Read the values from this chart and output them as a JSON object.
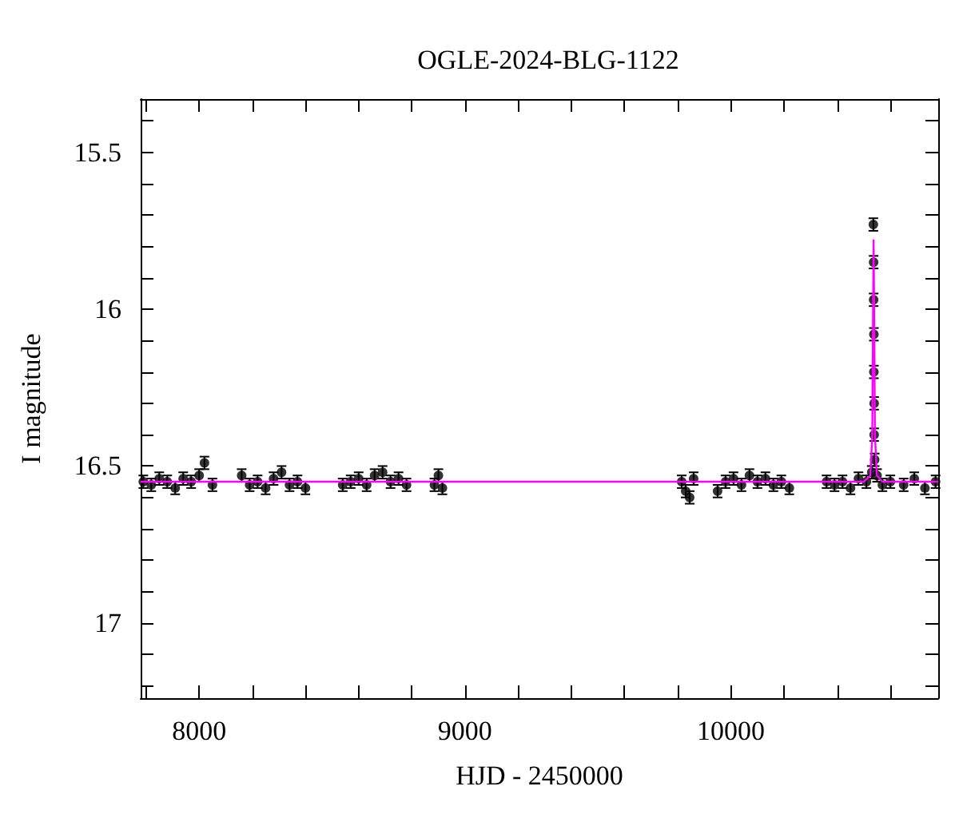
{
  "chart_data": {
    "type": "scatter",
    "title": "OGLE-2024-BLG-1122",
    "xlabel": "HJD - 2450000",
    "ylabel": "I magnitude",
    "xlim": [
      7780,
      10780
    ],
    "xticks": [
      {
        "value": 7800,
        "label": null
      },
      8000,
      {
        "value": 8200,
        "label": null
      },
      {
        "value": 8400,
        "label": null
      },
      {
        "value": 8600,
        "label": null
      },
      {
        "value": 8800,
        "label": null
      },
      9000,
      {
        "value": 9200,
        "label": null
      },
      {
        "value": 9400,
        "label": null
      },
      {
        "value": 9600,
        "label": null
      },
      {
        "value": 9800,
        "label": null
      },
      10000,
      {
        "value": 10200,
        "label": null
      },
      {
        "value": 10400,
        "label": null
      },
      {
        "value": 10600,
        "label": null
      }
    ],
    "ylim": [
      17.24,
      15.33
    ],
    "yticks": [
      {
        "value": 15.4,
        "label": null
      },
      15.5,
      {
        "value": 15.6,
        "label": null
      },
      {
        "value": 15.7,
        "label": null
      },
      {
        "value": 15.8,
        "label": null
      },
      {
        "value": 15.9,
        "label": null
      },
      16,
      {
        "value": 16.1,
        "label": null
      },
      {
        "value": 16.2,
        "label": null
      },
      {
        "value": 16.3,
        "label": null
      },
      {
        "value": 16.4,
        "label": null
      },
      16.5,
      {
        "value": 16.6,
        "label": null
      },
      {
        "value": 16.7,
        "label": null
      },
      {
        "value": 16.8,
        "label": null
      },
      {
        "value": 16.9,
        "label": null
      },
      17,
      {
        "value": 17.1,
        "label": null
      },
      {
        "value": 17.2,
        "label": null
      }
    ],
    "marker": "circle",
    "grid": false,
    "series": [
      {
        "color": "#000000",
        "x": [
          7790,
          7820,
          7850,
          7880,
          7910,
          7940,
          7970,
          8000,
          8020,
          8050,
          8160,
          8190,
          8220,
          8250,
          8280,
          8310,
          8340,
          8370,
          8400,
          8540,
          8570,
          8600,
          8630,
          8660,
          8690,
          8720,
          8750,
          8780,
          8885,
          8900,
          8915,
          9815,
          9830,
          9845,
          9860,
          9950,
          9980,
          10010,
          10040,
          10070,
          10100,
          10130,
          10160,
          10190,
          10220,
          10360,
          10390,
          10420,
          10450,
          10480,
          10510,
          10530,
          10536,
          10537,
          10537,
          10538,
          10538,
          10539,
          10539,
          10541,
          10550,
          10570,
          10600,
          10650,
          10690,
          10730,
          10770
        ],
        "values": [
          16.55,
          16.56,
          16.54,
          16.55,
          16.57,
          16.54,
          16.55,
          16.53,
          16.49,
          16.56,
          16.53,
          16.56,
          16.55,
          16.57,
          16.54,
          16.52,
          16.56,
          16.55,
          16.57,
          16.56,
          16.55,
          16.54,
          16.56,
          16.53,
          16.52,
          16.55,
          16.54,
          16.56,
          16.56,
          16.53,
          16.57,
          16.55,
          16.58,
          16.6,
          16.54,
          16.58,
          16.55,
          16.54,
          16.56,
          16.53,
          16.55,
          16.54,
          16.56,
          16.55,
          16.57,
          16.55,
          16.56,
          16.55,
          16.57,
          16.54,
          16.55,
          16.52,
          15.73,
          15.85,
          15.97,
          16.08,
          16.2,
          16.3,
          16.4,
          16.48,
          16.53,
          16.56,
          16.55,
          16.56,
          16.54,
          16.57,
          16.55
        ],
        "errors": [
          0.02,
          0.02,
          0.02,
          0.02,
          0.02,
          0.02,
          0.02,
          0.02,
          0.02,
          0.02,
          0.02,
          0.02,
          0.02,
          0.02,
          0.02,
          0.02,
          0.02,
          0.02,
          0.02,
          0.02,
          0.02,
          0.02,
          0.02,
          0.02,
          0.02,
          0.02,
          0.02,
          0.02,
          0.02,
          0.02,
          0.02,
          0.02,
          0.02,
          0.02,
          0.02,
          0.02,
          0.02,
          0.02,
          0.02,
          0.02,
          0.02,
          0.02,
          0.02,
          0.02,
          0.02,
          0.02,
          0.02,
          0.02,
          0.02,
          0.02,
          0.02,
          0.02,
          0.02,
          0.02,
          0.02,
          0.02,
          0.02,
          0.02,
          0.02,
          0.02,
          0.02,
          0.02,
          0.02,
          0.02,
          0.02,
          0.02,
          0.02
        ]
      },
      {
        "type": "line",
        "color": "#ff00ff",
        "marker": "none",
        "x": [
          7780,
          10500,
          10525,
          10532,
          10535,
          10537,
          10539,
          10542,
          10549,
          10570,
          10780
        ],
        "values": [
          16.55,
          16.55,
          16.53,
          16.4,
          16.0,
          15.78,
          16.0,
          16.4,
          16.53,
          16.55,
          16.55
        ]
      }
    ]
  }
}
